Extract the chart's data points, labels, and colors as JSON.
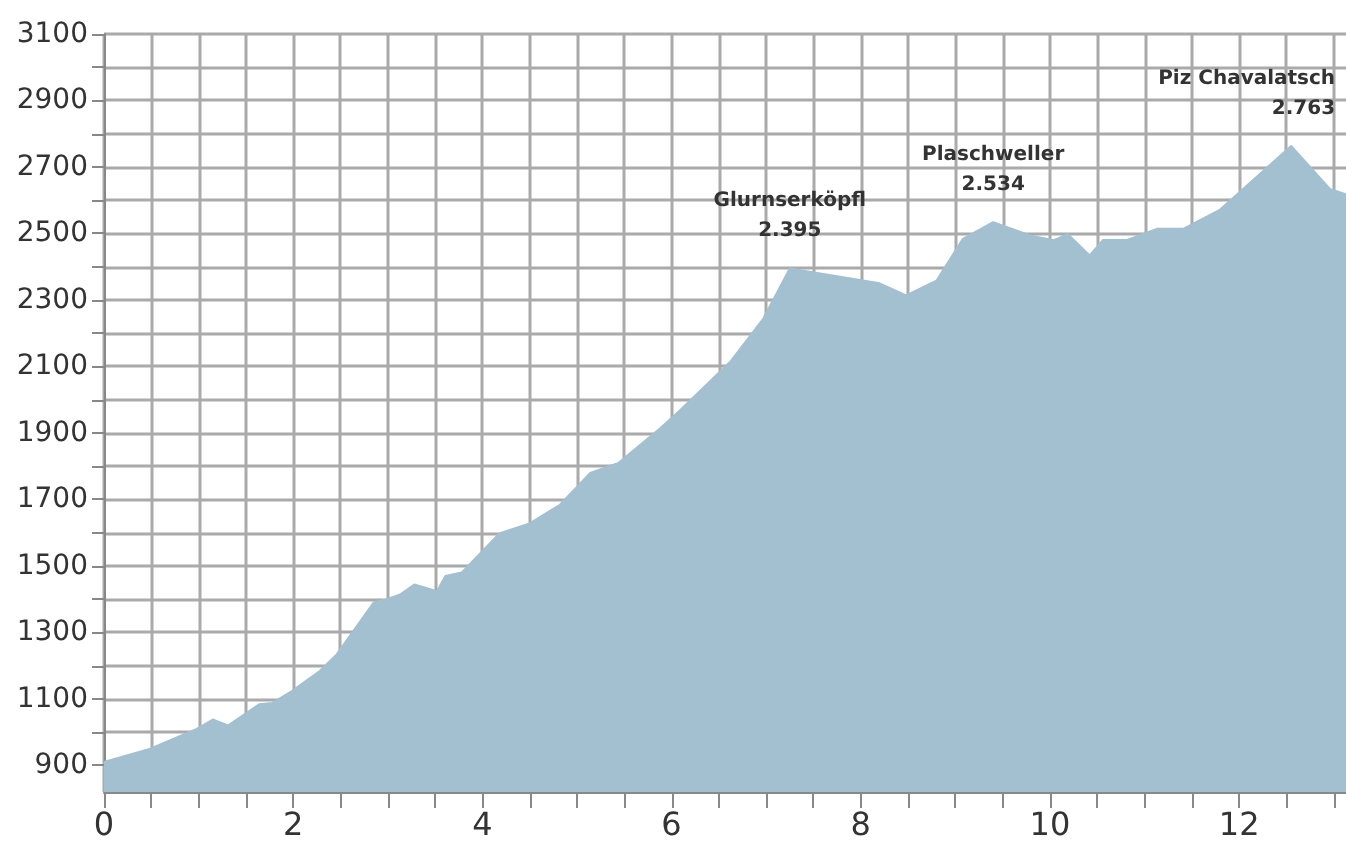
{
  "chart_data": {
    "type": "area",
    "color": "#a3c0d0",
    "grid": true,
    "marker": "none",
    "x": [
      0,
      0.49,
      0.98,
      1.15,
      1.31,
      1.64,
      1.78,
      1.99,
      2.28,
      2.46,
      2.85,
      2.99,
      3.13,
      3.28,
      3.52,
      3.61,
      3.78,
      4.18,
      4.5,
      4.82,
      5.14,
      5.44,
      5.88,
      6.09,
      6.62,
      6.97,
      7.25,
      8.2,
      8.48,
      8.8,
      9.08,
      9.4,
      9.79,
      10.04,
      10.19,
      10.42,
      10.56,
      10.81,
      11.13,
      11.41,
      11.8,
      12.55,
      12.96,
      13.13
    ],
    "values": [
      910,
      950,
      1010,
      1038,
      1020,
      1084,
      1088,
      1124,
      1184,
      1234,
      1390,
      1400,
      1414,
      1444,
      1424,
      1470,
      1480,
      1598,
      1628,
      1684,
      1780,
      1810,
      1914,
      1968,
      2114,
      2244,
      2395,
      2350,
      2314,
      2358,
      2484,
      2534,
      2494,
      2480,
      2498,
      2434,
      2480,
      2480,
      2514,
      2514,
      2572,
      2763,
      2634,
      2618
    ],
    "xlim": [
      0,
      13.13
    ],
    "xticks": [
      0,
      {
        "value": 0.5,
        "label": null
      },
      {
        "value": 1,
        "label": null
      },
      {
        "value": 1.5,
        "label": null
      },
      2,
      {
        "value": 2.5,
        "label": null
      },
      {
        "value": 3,
        "label": null
      },
      {
        "value": 3.5,
        "label": null
      },
      4,
      {
        "value": 4.5,
        "label": null
      },
      {
        "value": 5,
        "label": null
      },
      {
        "value": 5.5,
        "label": null
      },
      6,
      {
        "value": 6.5,
        "label": null
      },
      {
        "value": 7,
        "label": null
      },
      {
        "value": 7.5,
        "label": null
      },
      8,
      {
        "value": 8.5,
        "label": null
      },
      {
        "value": 9,
        "label": null
      },
      {
        "value": 9.5,
        "label": null
      },
      10,
      {
        "value": 10.5,
        "label": null
      },
      {
        "value": 11,
        "label": null
      },
      {
        "value": 11.5,
        "label": null
      },
      12,
      {
        "value": 12.5,
        "label": null
      },
      {
        "value": 13,
        "label": null
      }
    ],
    "ylim": [
      820,
      3100
    ],
    "yticks": [
      900,
      {
        "value": 1000,
        "label": null
      },
      1100,
      {
        "value": 1200,
        "label": null
      },
      1300,
      {
        "value": 1400,
        "label": null
      },
      1500,
      {
        "value": 1600,
        "label": null
      },
      1700,
      {
        "value": 1800,
        "label": null
      },
      1900,
      {
        "value": 2000,
        "label": null
      },
      2100,
      {
        "value": 2200,
        "label": null
      },
      2300,
      {
        "value": 2400,
        "label": null
      },
      2500,
      {
        "value": 2600,
        "label": null
      },
      2700,
      {
        "value": 2800,
        "label": null
      },
      2900,
      {
        "value": 3000,
        "label": null
      },
      3100
    ],
    "annotations": [
      {
        "text": "Glurnserköpfl\n2.395",
        "x": 7.25,
        "y": 2395
      },
      {
        "text": "Plaschweller\n2.534",
        "x": 9.4,
        "y": 2534
      },
      {
        "text": "Piz Chavalatsch\n2.763",
        "x": 12.55,
        "y": 2763
      }
    ]
  }
}
